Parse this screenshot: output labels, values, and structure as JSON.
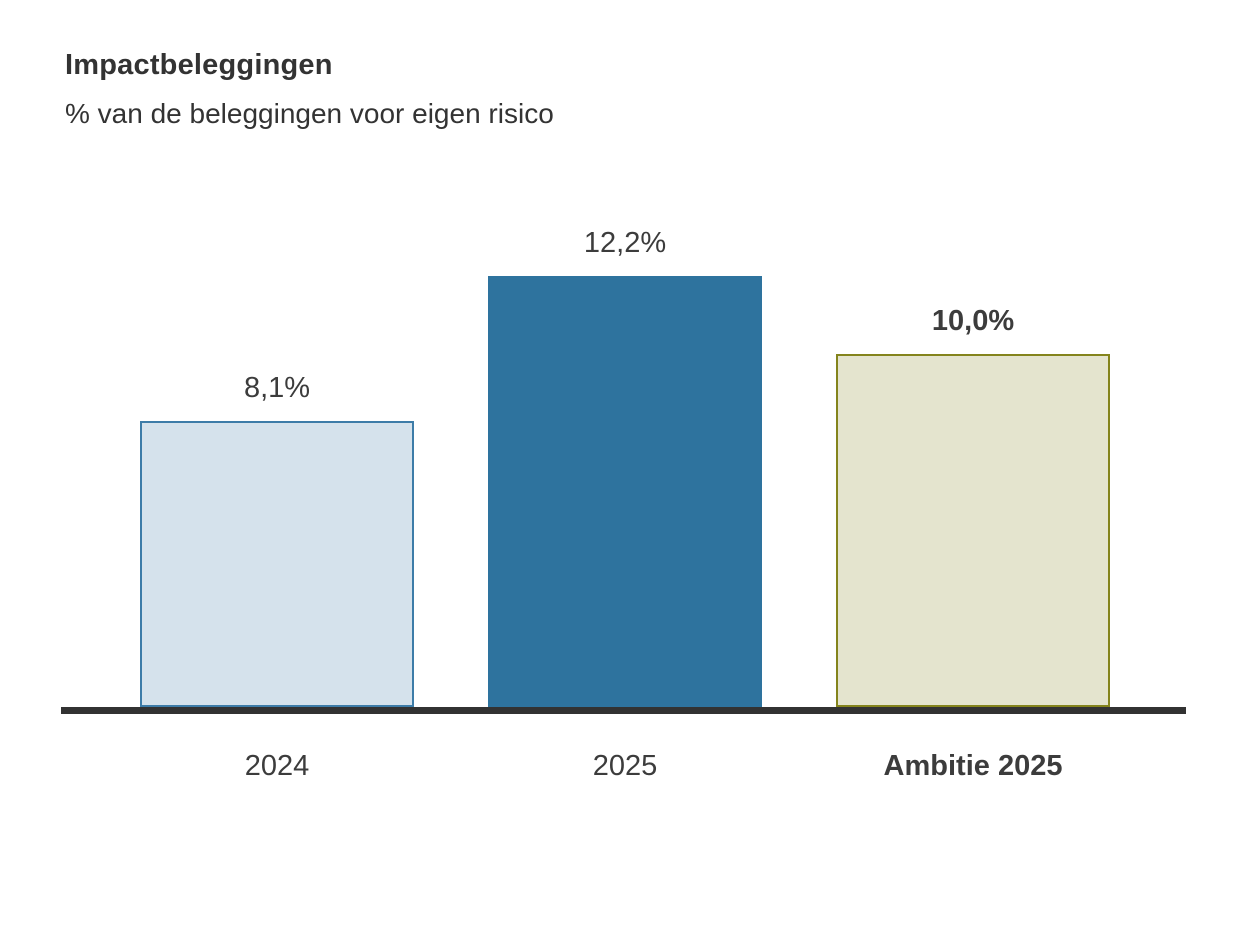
{
  "header": {
    "title": "Impactbeleggingen",
    "subtitle": "% van de beleggingen voor eigen risico"
  },
  "chart_data": {
    "type": "bar",
    "title": "Impactbeleggingen",
    "subtitle": "% van de beleggingen voor eigen risico",
    "categories": [
      "2024",
      "2025",
      "Ambitie 2025"
    ],
    "values": [
      8.1,
      12.2,
      10.0
    ],
    "value_labels": [
      "8,1%",
      "12,2%",
      "10,0%"
    ],
    "ylim": [
      0,
      13
    ],
    "grid": false,
    "legend": false,
    "axis_color": "#323232",
    "text_color": "#3c3c3c",
    "bars": [
      {
        "category": "2024",
        "value": 8.1,
        "value_label": "8,1%",
        "fill": "#d5e2ec",
        "stroke": "#3d7ca8",
        "emphasis": false
      },
      {
        "category": "2025",
        "value": 12.2,
        "value_label": "12,2%",
        "fill": "#2e739e",
        "stroke": "#2e739e",
        "emphasis": false
      },
      {
        "category": "Ambitie 2025",
        "value": 10.0,
        "value_label": "10,0%",
        "fill": "#e4e4ce",
        "stroke": "#84841c",
        "emphasis": true
      }
    ]
  }
}
